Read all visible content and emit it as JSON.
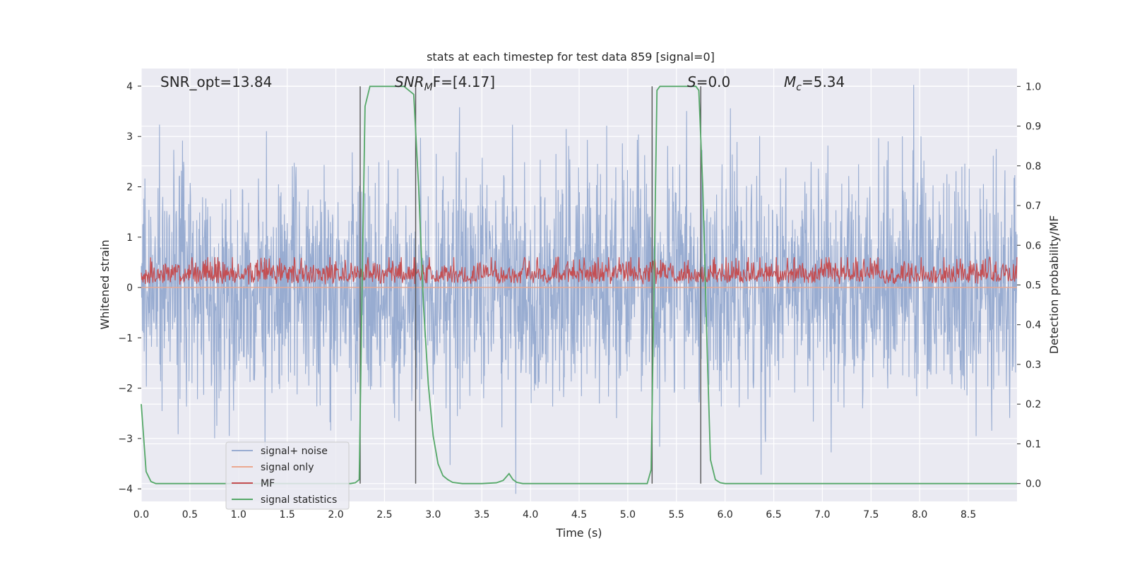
{
  "chart_data": {
    "type": "line",
    "title": "stats at each timestep for test data 859 [signal=0]",
    "xlabel": "Time (s)",
    "ylabel": "Whitened strain",
    "y2label": "Detection probability/MF",
    "xlim": [
      0.0,
      9.0
    ],
    "ylim": [
      -4.25,
      4.35
    ],
    "y2lim": [
      -0.045,
      1.045
    ],
    "xticks": [
      "0.0",
      "0.5",
      "1.0",
      "1.5",
      "2.0",
      "2.5",
      "3.0",
      "3.5",
      "4.0",
      "4.5",
      "5.0",
      "5.5",
      "6.0",
      "6.5",
      "7.0",
      "7.5",
      "8.0",
      "8.5"
    ],
    "yticks": [
      "4",
      "3",
      "2",
      "1",
      "0",
      "−1",
      "−2",
      "−3",
      "−4"
    ],
    "y2ticks": [
      "1.0",
      "0.9",
      "0.8",
      "0.7",
      "0.6",
      "0.5",
      "0.4",
      "0.3",
      "0.2",
      "0.1",
      "0.0"
    ],
    "grid": true,
    "legend_position": "lower-left",
    "annotations": {
      "snr_opt": "SNR_opt=13.84",
      "snr_mf_main": "SNR",
      "snr_mf_sub": "M",
      "snr_mf_rest": "F=[4.17]",
      "s_main": "S",
      "s_rest": "=0.0",
      "mc_main": "M",
      "mc_sub": "c",
      "mc_rest": "=5.34"
    },
    "vlines": [
      2.25,
      2.82,
      5.25,
      5.75
    ],
    "series": [
      {
        "name": "signal+ noise",
        "color": "#98acd1",
        "style": "noise",
        "amplitude_scale": 1.0,
        "description": "stationary noise about 0"
      },
      {
        "name": "signal only",
        "color": "#eba88f",
        "style": "flat",
        "values_constant": 0.0
      },
      {
        "name": "MF",
        "color": "#c44e52",
        "style": "positive-noise",
        "range": [
          0.0,
          1.0
        ]
      },
      {
        "name": "signal statistics",
        "color": "#55a868",
        "axis": "right",
        "x": [
          0.0,
          0.05,
          0.1,
          0.15,
          0.2,
          2.15,
          2.2,
          2.24,
          2.27,
          2.3,
          2.35,
          2.4,
          2.7,
          2.75,
          2.8,
          2.85,
          2.9,
          2.95,
          3.0,
          3.05,
          3.1,
          3.15,
          3.2,
          3.3,
          3.4,
          3.5,
          3.65,
          3.72,
          3.78,
          3.82,
          3.86,
          3.92,
          4.0,
          5.2,
          5.24,
          5.27,
          5.3,
          5.33,
          5.7,
          5.73,
          5.77,
          5.82,
          5.85,
          5.9,
          5.95,
          6.0,
          9.0
        ],
        "y": [
          0.2,
          0.03,
          0.005,
          0.0,
          0.0,
          0.0,
          0.002,
          0.01,
          0.5,
          0.95,
          1.0,
          1.0,
          1.0,
          0.99,
          0.98,
          0.75,
          0.45,
          0.25,
          0.12,
          0.05,
          0.02,
          0.01,
          0.003,
          0.0,
          0.0,
          0.0,
          0.002,
          0.008,
          0.025,
          0.01,
          0.003,
          0.0,
          0.0,
          0.0,
          0.035,
          0.5,
          0.99,
          1.0,
          1.0,
          0.99,
          0.75,
          0.3,
          0.06,
          0.01,
          0.002,
          0.0,
          0.0
        ]
      }
    ]
  }
}
